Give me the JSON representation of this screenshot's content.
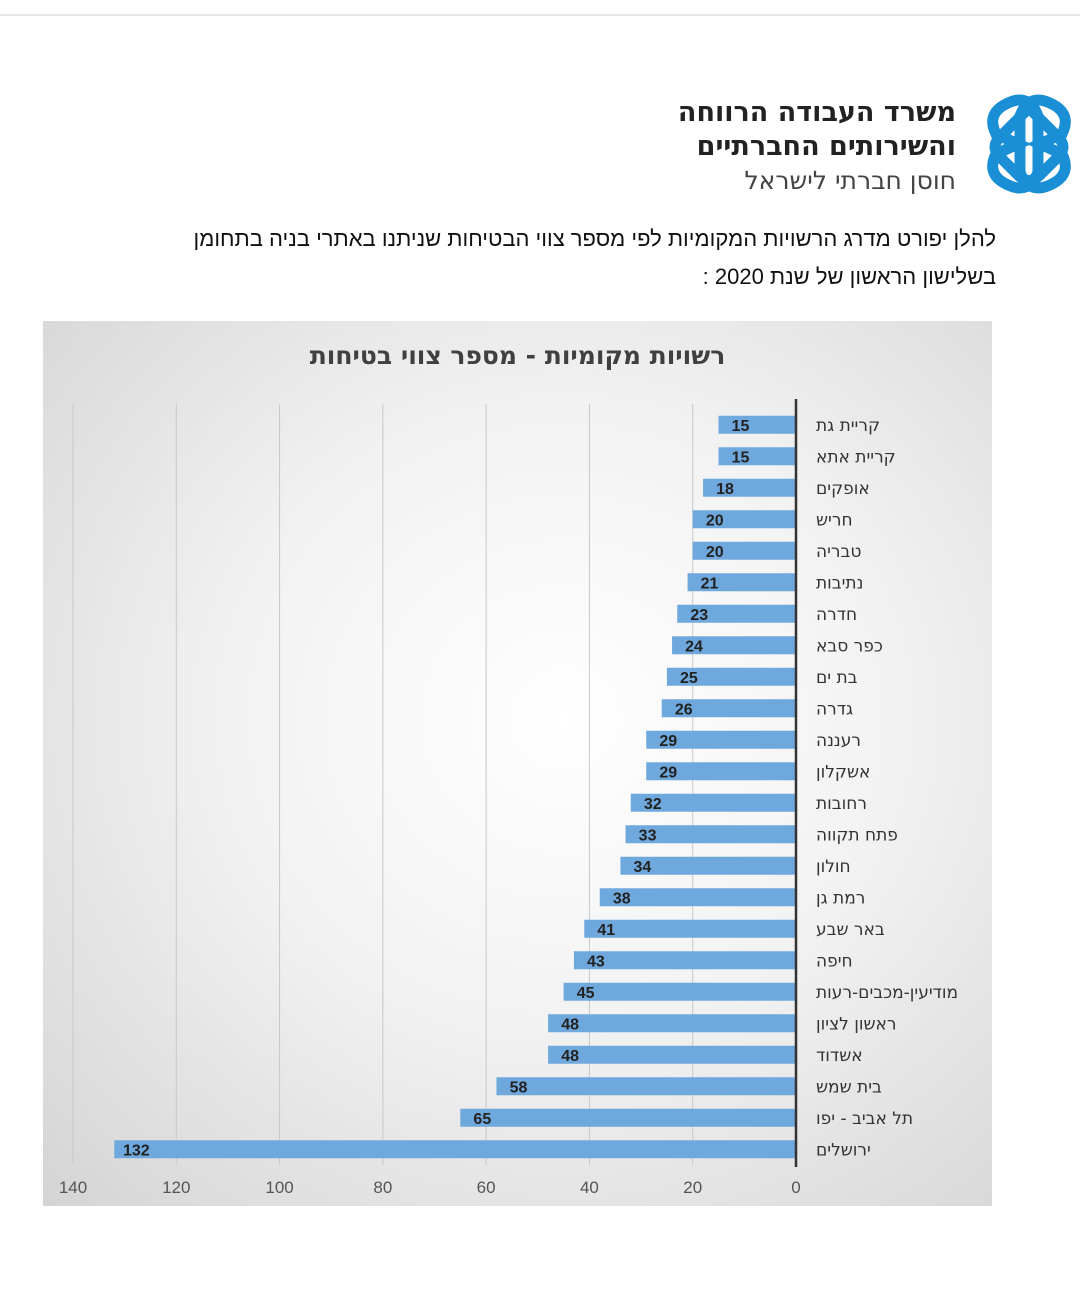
{
  "header": {
    "org_line1": "משרד העבודה הרווחה",
    "org_line2": "והשירותים החברתיים",
    "org_line3": "חוסן חברתי לישראל",
    "logo_color": "#1b8fd6"
  },
  "intro": {
    "line1": "להלן יפורט מדרג הרשויות המקומיות לפי מספר צווי הבטיחות שניתנו באתרי בניה בתחומן",
    "line2": "בשלישון הראשון של שנת 2020 :"
  },
  "chart_data": {
    "type": "bar",
    "orientation": "horizontal",
    "title": "רשויות מקומיות - מספר צווי בטיחות",
    "categories": [
      "קריית גת",
      "קריית אתא",
      "אופקים",
      "חריש",
      "טבריה",
      "נתיבות",
      "חדרה",
      "כפר סבא",
      "בת ים",
      "גדרה",
      "רעננה",
      "אשקלון",
      "רחובות",
      "פתח תקווה",
      "חולון",
      "רמת גן",
      "באר שבע",
      "חיפה",
      "מודיעין-מכבים-רעות",
      "ראשון לציון",
      "אשדוד",
      "בית שמש",
      "תל אביב - יפו",
      "ירושלים"
    ],
    "values": [
      15,
      15,
      18,
      20,
      20,
      21,
      23,
      24,
      25,
      26,
      29,
      29,
      32,
      33,
      34,
      38,
      41,
      43,
      45,
      48,
      48,
      58,
      65,
      132
    ],
    "xlim": [
      0,
      140
    ],
    "x_ticks": [
      0,
      20,
      40,
      60,
      80,
      100,
      120,
      140
    ],
    "x_reversed": true,
    "grid": true,
    "data_labels": true,
    "bar_color": "#6fa8dc"
  }
}
